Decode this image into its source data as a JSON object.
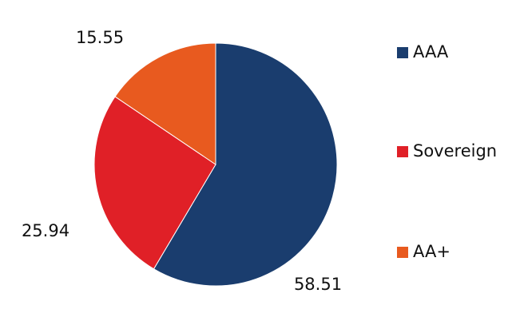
{
  "chart_data": {
    "type": "pie",
    "categories": [
      "AAA",
      "Sovereign",
      "AA+"
    ],
    "values": [
      58.51,
      25.94,
      15.55
    ],
    "colors": [
      "#1a3d6e",
      "#e02027",
      "#e85a1f"
    ],
    "legend": "right"
  }
}
